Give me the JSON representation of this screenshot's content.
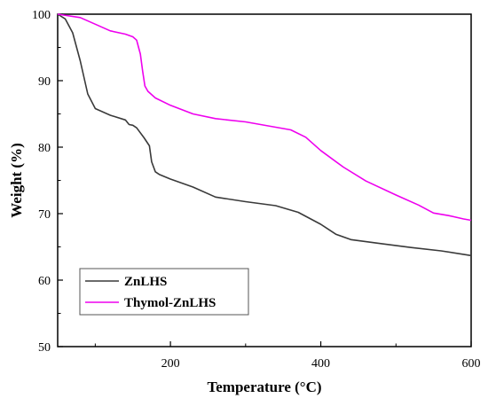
{
  "chart_data": {
    "type": "line",
    "xlabel": "Temperature (°C)",
    "ylabel": "Weight (%)",
    "xlim": [
      50,
      600
    ],
    "ylim": [
      50,
      100
    ],
    "x_ticks": [
      200,
      400,
      600
    ],
    "y_ticks": [
      50,
      60,
      70,
      80,
      90,
      100
    ],
    "grid": false,
    "legend_position": "bottom-left",
    "series": [
      {
        "name": "ZnLHS",
        "color": "#3a3a3a",
        "x": [
          50,
          60,
          70,
          80,
          90,
          100,
          120,
          140,
          145,
          150,
          155,
          165,
          172,
          175,
          180,
          185,
          200,
          230,
          260,
          300,
          340,
          370,
          400,
          420,
          440,
          480,
          520,
          560,
          600
        ],
        "y": [
          100,
          99.3,
          97.2,
          93,
          88,
          85.8,
          84.8,
          84.1,
          83.4,
          83.3,
          82.9,
          81.4,
          80.2,
          77.8,
          76.3,
          75.9,
          75.2,
          74,
          72.5,
          71.8,
          71.2,
          70.2,
          68.4,
          66.9,
          66.1,
          65.5,
          64.9,
          64.4,
          63.7
        ]
      },
      {
        "name": "Thymol-ZnLHS",
        "color": "#ee00ee",
        "x": [
          50,
          80,
          100,
          120,
          140,
          150,
          155,
          160,
          163,
          166,
          170,
          180,
          200,
          230,
          260,
          300,
          330,
          360,
          380,
          400,
          430,
          460,
          500,
          530,
          550,
          570,
          590,
          600
        ],
        "y": [
          100,
          99.5,
          98.5,
          97.5,
          97,
          96.6,
          96.1,
          94,
          91.5,
          89.2,
          88.4,
          87.4,
          86.3,
          85,
          84.3,
          83.8,
          83.2,
          82.6,
          81.5,
          79.5,
          77,
          74.9,
          72.8,
          71.3,
          70.1,
          69.7,
          69.2,
          69
        ]
      }
    ]
  }
}
